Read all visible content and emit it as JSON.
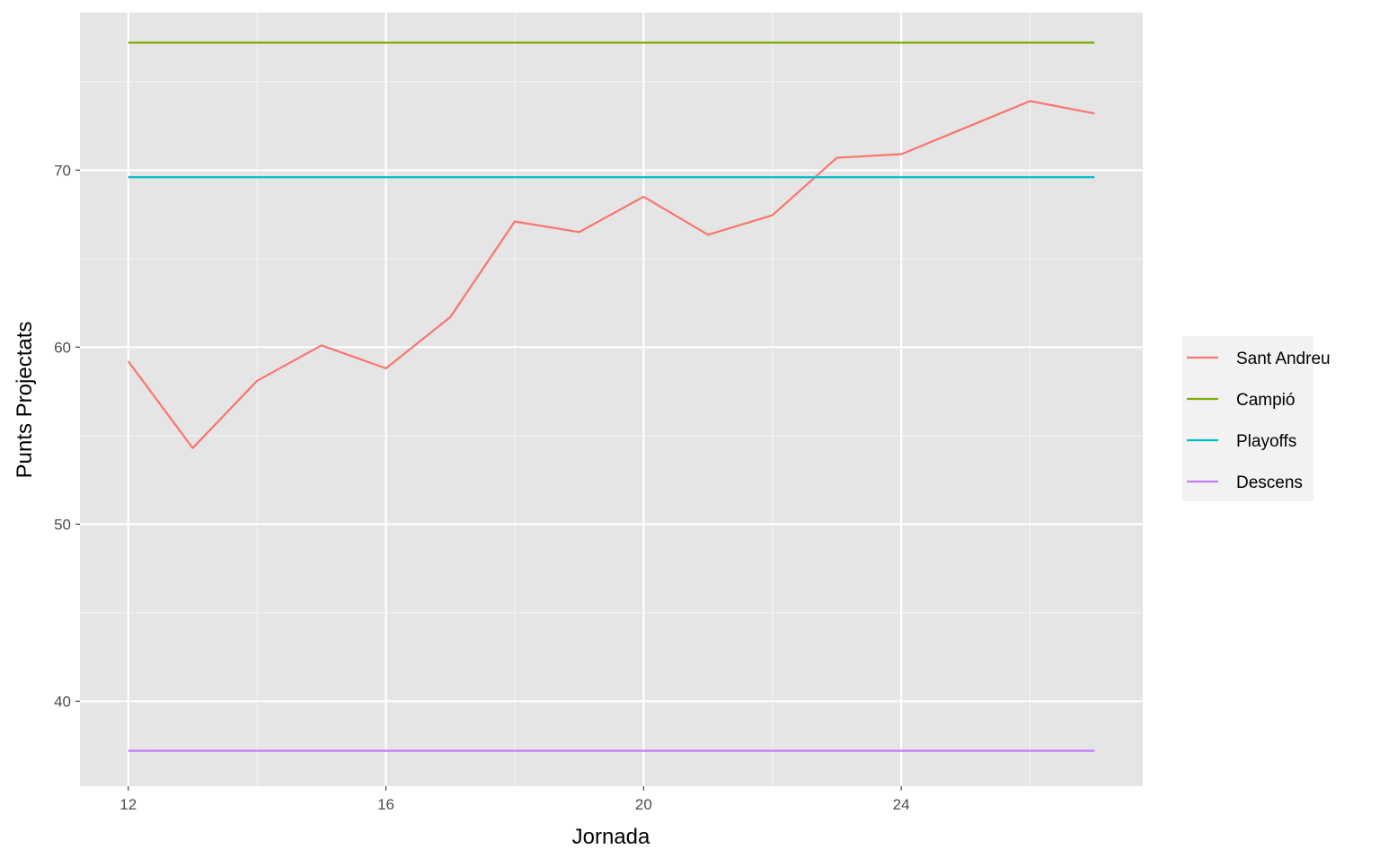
{
  "chart_data": {
    "type": "line",
    "xlabel": "Jornada",
    "ylabel": "Punts Projectats",
    "xlim": [
      11.25,
      27.75
    ],
    "ylim": [
      35.2,
      78.9
    ],
    "x_ticks": [
      12,
      16,
      20,
      24
    ],
    "y_ticks": [
      40,
      50,
      60,
      70
    ],
    "grid": true,
    "legend_position": "right",
    "series": [
      {
        "name": "Sant Andreu",
        "color": "#F8766D",
        "x": [
          12,
          13,
          14,
          15,
          16,
          17,
          18,
          19,
          20,
          21,
          22,
          23,
          24,
          25,
          26,
          27
        ],
        "y": [
          59.2,
          54.3,
          58.1,
          60.1,
          58.8,
          61.7,
          67.1,
          66.5,
          68.5,
          66.35,
          67.45,
          70.7,
          70.9,
          72.4,
          73.9,
          73.2
        ]
      },
      {
        "name": "Campió",
        "color": "#7CAE00",
        "x": [
          12,
          27
        ],
        "y": [
          77.2,
          77.2
        ]
      },
      {
        "name": "Playoffs",
        "color": "#00BFC4",
        "x": [
          12,
          27
        ],
        "y": [
          69.6,
          69.6
        ]
      },
      {
        "name": "Descens",
        "color": "#C77CFF",
        "x": [
          12,
          27
        ],
        "y": [
          37.2,
          37.2
        ]
      }
    ]
  }
}
